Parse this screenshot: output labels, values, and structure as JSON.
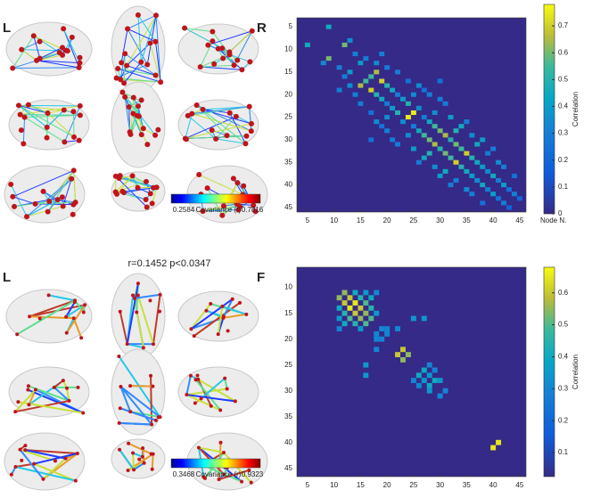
{
  "annotation": "r=0.1452 p<0.0347",
  "brain_panels": [
    {
      "left_label": "L",
      "right_label": "R",
      "colorbar": {
        "min": 0.2584,
        "title": "Covariance (r)",
        "max": 0.7816
      }
    },
    {
      "left_label": "L",
      "right_label": "F",
      "colorbar": {
        "min": 0.3468,
        "title": "Covariance (r)",
        "max": 0.9323
      }
    }
  ],
  "chart_data": [
    {
      "type": "heatmap",
      "x_label": "Node N.",
      "colorbar_label": "Correlation",
      "xlim": [
        3,
        46.2
      ],
      "ylim": [
        3,
        46
      ],
      "xticks": [
        5,
        10,
        15,
        20,
        25,
        30,
        35,
        40,
        45
      ],
      "yticks": [
        5,
        10,
        15,
        20,
        25,
        30,
        35,
        40,
        45
      ],
      "clim": [
        0,
        0.78
      ],
      "cticks": [
        0,
        0.1,
        0.2,
        0.3,
        0.4,
        0.5,
        0.6,
        0.7
      ],
      "cells": [
        [
          9,
          5,
          0.45
        ],
        [
          12,
          9,
          0.6
        ],
        [
          13,
          8,
          0.35
        ],
        [
          14,
          11,
          0.3
        ],
        [
          15,
          13,
          0.4
        ],
        [
          17,
          16,
          0.55
        ],
        [
          18,
          15,
          0.65
        ],
        [
          19,
          17,
          0.7
        ],
        [
          20,
          18,
          0.5
        ],
        [
          18,
          13,
          0.35
        ],
        [
          16,
          12,
          0.3
        ],
        [
          21,
          19,
          0.45
        ],
        [
          22,
          20,
          0.3
        ],
        [
          23,
          21,
          0.4
        ],
        [
          24,
          22,
          0.5
        ],
        [
          25,
          24,
          0.75
        ],
        [
          26,
          23,
          0.35
        ],
        [
          27,
          25,
          0.3
        ],
        [
          28,
          26,
          0.45
        ],
        [
          29,
          27,
          0.55
        ],
        [
          30,
          28,
          0.6
        ],
        [
          31,
          29,
          0.65
        ],
        [
          32,
          30,
          0.5
        ],
        [
          33,
          31,
          0.6
        ],
        [
          34,
          32,
          0.55
        ],
        [
          35,
          33,
          0.7
        ],
        [
          36,
          34,
          0.5
        ],
        [
          37,
          35,
          0.45
        ],
        [
          38,
          36,
          0.4
        ],
        [
          39,
          37,
          0.35
        ],
        [
          40,
          38,
          0.45
        ],
        [
          41,
          39,
          0.3
        ],
        [
          42,
          40,
          0.4
        ],
        [
          43,
          41,
          0.25
        ],
        [
          44,
          42,
          0.3
        ],
        [
          45,
          43,
          0.2
        ],
        [
          26,
          18,
          0.35
        ],
        [
          28,
          20,
          0.3
        ],
        [
          30,
          17,
          0.25
        ],
        [
          32,
          25,
          0.4
        ],
        [
          34,
          27,
          0.45
        ],
        [
          36,
          29,
          0.35
        ],
        [
          38,
          30,
          0.4
        ],
        [
          40,
          32,
          0.3
        ],
        [
          35,
          26,
          0.3
        ],
        [
          31,
          22,
          0.3
        ],
        [
          27,
          19,
          0.25
        ],
        [
          33,
          28,
          0.5
        ],
        [
          37,
          31,
          0.45
        ],
        [
          41,
          35,
          0.35
        ],
        [
          22,
          15,
          0.3
        ],
        [
          20,
          14,
          0.3
        ],
        [
          24,
          17,
          0.25
        ],
        [
          29,
          24,
          0.35
        ],
        [
          39,
          33,
          0.3
        ],
        [
          44,
          38,
          0.25
        ],
        [
          42,
          36,
          0.3
        ],
        [
          30,
          21,
          0.3
        ],
        [
          25,
          20,
          0.35
        ],
        [
          19,
          11,
          0.3
        ]
      ]
    },
    {
      "type": "heatmap",
      "colorbar_label": "Correlation",
      "xlim": [
        3,
        46.2
      ],
      "ylim": [
        6.1,
        46.6
      ],
      "xticks": [
        5,
        10,
        15,
        20,
        25,
        30,
        35,
        40,
        45
      ],
      "yticks": [
        10,
        15,
        20,
        25,
        30,
        35,
        40,
        45
      ],
      "clim": [
        0.025,
        0.68
      ],
      "cticks": [
        0.1,
        0.2,
        0.3,
        0.4,
        0.5,
        0.6
      ],
      "cells": [
        [
          12,
          11,
          0.55
        ],
        [
          13,
          12,
          0.6
        ],
        [
          14,
          13,
          0.65
        ],
        [
          15,
          14,
          0.6
        ],
        [
          16,
          15,
          0.55
        ],
        [
          17,
          16,
          0.5
        ],
        [
          15,
          12,
          0.45
        ],
        [
          16,
          13,
          0.5
        ],
        [
          17,
          14,
          0.45
        ],
        [
          14,
          11,
          0.4
        ],
        [
          18,
          15,
          0.35
        ],
        [
          16,
          11,
          0.35
        ],
        [
          19,
          18,
          0.3
        ],
        [
          20,
          19,
          0.3
        ],
        [
          23,
          22,
          0.6
        ],
        [
          24,
          23,
          0.55
        ],
        [
          27,
          26,
          0.4
        ],
        [
          28,
          27,
          0.35
        ],
        [
          29,
          28,
          0.4
        ],
        [
          29,
          26,
          0.3
        ],
        [
          25,
          16,
          0.35
        ],
        [
          27,
          16,
          0.35
        ],
        [
          30,
          28,
          0.35
        ],
        [
          31,
          30,
          0.3
        ],
        [
          28,
          25,
          0.3
        ],
        [
          22,
          18,
          0.3
        ],
        [
          41,
          40,
          0.65
        ],
        [
          18,
          11,
          0.3
        ],
        [
          17,
          12,
          0.4
        ],
        [
          20,
          18,
          0.3
        ]
      ]
    }
  ]
}
